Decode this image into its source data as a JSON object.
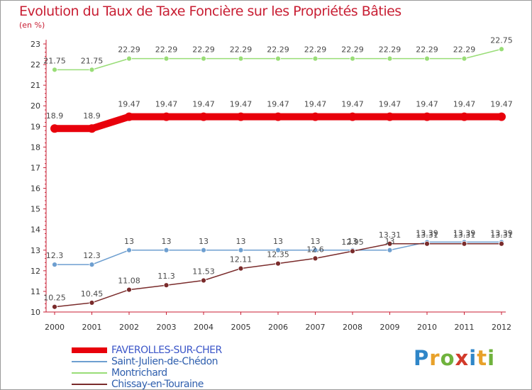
{
  "title": "Evolution du Taux de Taxe Foncière sur les Propriétés Bâties",
  "unit_label": "(en %)",
  "logo": {
    "letters": [
      "P",
      "r",
      "o",
      "x",
      "i",
      "t",
      "i"
    ],
    "colors": [
      "#2f86c8",
      "#e8a12a",
      "#6fb23c",
      "#d23a2a",
      "#2f86c8",
      "#e8a12a",
      "#6fb23c"
    ]
  },
  "chart_data": {
    "type": "line",
    "title": "Evolution du Taux de Taxe Foncière sur les Propriétés Bâties",
    "ylabel": "(en %)",
    "xlabel": "",
    "ylim": [
      10,
      23
    ],
    "yticks": [
      10,
      11,
      12,
      13,
      14,
      15,
      16,
      17,
      18,
      19,
      20,
      21,
      22,
      23
    ],
    "x": [
      "2000",
      "2001",
      "2002",
      "2003",
      "2004",
      "2005",
      "2006",
      "2007",
      "2008",
      "2009",
      "2010",
      "2011",
      "2012"
    ],
    "grid": false,
    "legend_position": "bottom-left",
    "series": [
      {
        "name": "FAVEROLLES-SUR-CHER",
        "color": "#e8000b",
        "values": [
          18.9,
          18.9,
          19.47,
          19.47,
          19.47,
          19.47,
          19.47,
          19.47,
          19.47,
          19.47,
          19.47,
          19.47,
          19.47
        ],
        "labels": [
          "18.9",
          "18.9",
          "19.47",
          "19.47",
          "19.47",
          "19.47",
          "19.47",
          "19.47",
          "19.47",
          "19.47",
          "19.47",
          "19.47",
          "19.47"
        ]
      },
      {
        "name": "Saint-Julien-de-Chédon",
        "color": "#6e9fd0",
        "values": [
          12.3,
          12.3,
          13,
          13,
          13,
          13,
          13,
          13,
          13,
          13,
          13.39,
          13.39,
          13.39
        ],
        "labels": [
          "12.3",
          "12.3",
          "13",
          "13",
          "13",
          "13",
          "13",
          "13",
          "13",
          "13",
          "13.39",
          "13.39",
          "13.39"
        ]
      },
      {
        "name": "Montrichard",
        "color": "#99dd77",
        "values": [
          21.75,
          21.75,
          22.29,
          22.29,
          22.29,
          22.29,
          22.29,
          22.29,
          22.29,
          22.29,
          22.29,
          22.29,
          22.75
        ],
        "labels": [
          "21.75",
          "21.75",
          "22.29",
          "22.29",
          "22.29",
          "22.29",
          "22.29",
          "22.29",
          "22.29",
          "22.29",
          "22.29",
          "22.29",
          "22.75"
        ]
      },
      {
        "name": "Chissay-en-Touraine",
        "color": "#7a2b2b",
        "values": [
          10.25,
          10.45,
          11.08,
          11.3,
          11.53,
          12.11,
          12.35,
          12.6,
          12.95,
          13.31,
          13.31,
          13.31,
          13.31
        ],
        "labels": [
          "10.25",
          "10.45",
          "11.08",
          "11.3",
          "11.53",
          "12.11",
          "12.35",
          "12.6",
          "12.95",
          "13.31",
          "13.31",
          "13.31",
          "13.31"
        ]
      }
    ]
  }
}
